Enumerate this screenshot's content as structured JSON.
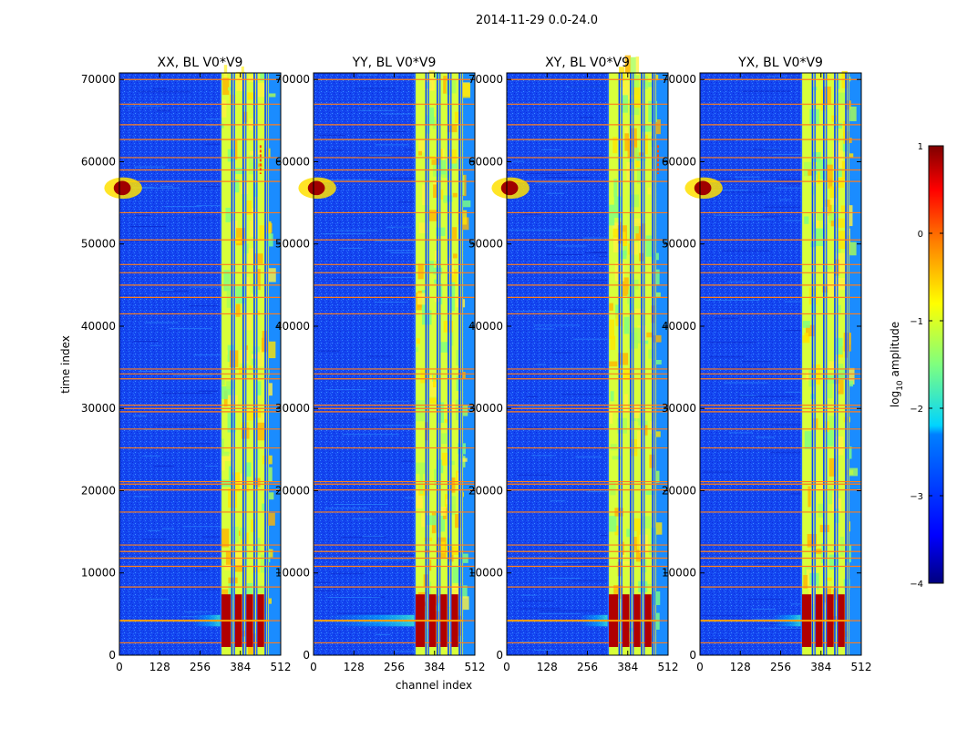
{
  "suptitle": "2014-11-29 0.0-24.0",
  "chart_data": {
    "type": "heatmap",
    "panels": [
      {
        "title": "XX, BL V0*V9",
        "bright_channels": [
          448
        ],
        "low_flare_extent": 0.18
      },
      {
        "title": "YY, BL V0*V9",
        "bright_channels": [],
        "low_flare_extent": 0.55
      },
      {
        "title": "XY, BL V0*V9",
        "bright_channels": [
          480
        ],
        "low_flare_extent": 0.18
      },
      {
        "title": "YX, BL V0*V9",
        "bright_channels": [],
        "low_flare_extent": 0.18
      }
    ],
    "xlabel": "channel index",
    "ylabel": "time index",
    "xlim": [
      0,
      512
    ],
    "ylim": [
      0,
      70800
    ],
    "xticks": [
      0,
      128,
      256,
      384,
      512
    ],
    "yticks": [
      0,
      10000,
      20000,
      30000,
      40000,
      50000,
      60000,
      70000
    ],
    "rfi_band": {
      "start_channel": 322,
      "end_channel": 512,
      "end_channel_right": 475
    },
    "rfi_band_sub_channels": [
      322,
      357,
      365,
      393,
      401,
      428,
      436,
      463,
      470
    ],
    "flagged_time_rows": [
      1500,
      4200,
      8300,
      10800,
      11800,
      12600,
      13400,
      17400,
      20100,
      20800,
      21100,
      25200,
      27500,
      29600,
      30000,
      30400,
      33600,
      34200,
      34800,
      41500,
      43500,
      45000,
      46500,
      47500,
      50500,
      53800,
      57600,
      59000,
      60500,
      62700,
      64500,
      67000,
      70000
    ],
    "bright_burst": {
      "time_center": 4200,
      "time_halfwidth": 3200
    },
    "low_channel_blob": {
      "time_center": 56800,
      "time_halfwidth": 1300,
      "channel_end": 60
    },
    "colorbar": {
      "label": "log10 amplitude",
      "label_prefix": "log",
      "label_sub": "10",
      "label_suffix": " amplitude",
      "range": [
        -4,
        1
      ],
      "ticks": [
        "1",
        "0",
        "−1",
        "−2",
        "−3",
        "−4"
      ],
      "tick_values": [
        1,
        0,
        -1,
        -2,
        -3,
        -4
      ],
      "colormap": [
        "#00007f",
        "#0000ff",
        "#007fff",
        "#00ffff",
        "#7fff7f",
        "#ffff00",
        "#ff7f00",
        "#ff0000",
        "#7f0000"
      ]
    }
  }
}
